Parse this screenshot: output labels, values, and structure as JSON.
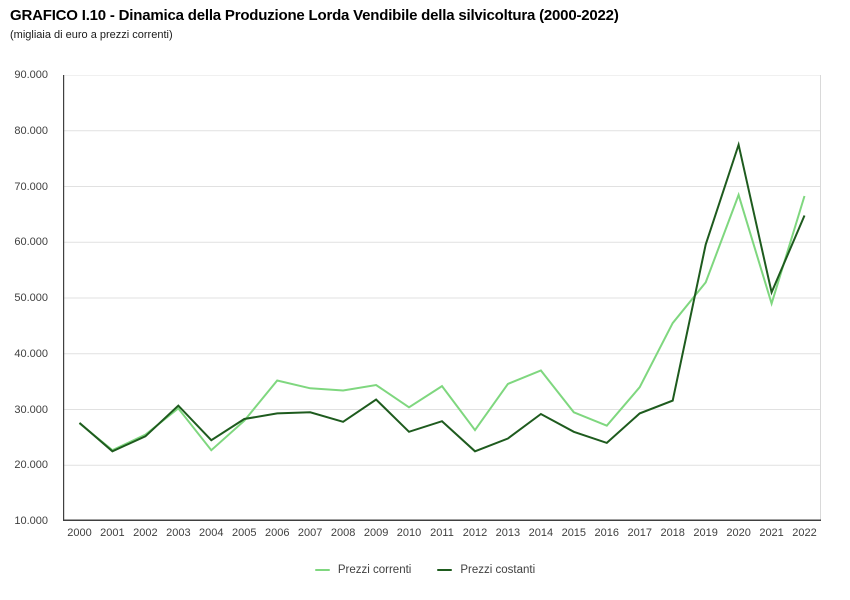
{
  "title": "GRAFICO I.10 - Dinamica della Produzione Lorda Vendibile della silvicoltura (2000-2022)",
  "subtitle": "(migliaia di euro a prezzi correnti)",
  "colors": {
    "series_correnti": "#7fd77f",
    "series_costanti": "#1e5b1e",
    "grid": "#e1e1e1",
    "plot_border_right": "#d9d9d9",
    "axis": "#404040",
    "tick_text": "#404040",
    "title_text": "#000000"
  },
  "legend": {
    "items": [
      {
        "label": "Prezzi correnti",
        "series_index": 0
      },
      {
        "label": "Prezzi costanti",
        "series_index": 1
      }
    ]
  },
  "chart_data": {
    "type": "line",
    "title": "GRAFICO I.10 - Dinamica della Produzione Lorda Vendibile della silvicoltura (2000-2022)",
    "subtitle": "(migliaia di euro a prezzi correnti)",
    "xlabel": "",
    "ylabel": "",
    "categories": [
      "2000",
      "2001",
      "2002",
      "2003",
      "2004",
      "2005",
      "2006",
      "2007",
      "2008",
      "2009",
      "2010",
      "2011",
      "2012",
      "2013",
      "2014",
      "2015",
      "2016",
      "2017",
      "2018",
      "2019",
      "2020",
      "2021",
      "2022"
    ],
    "series": [
      {
        "name": "Prezzi correnti",
        "color": "#7fd77f",
        "values": [
          27500,
          22700,
          25500,
          30200,
          22700,
          28000,
          35200,
          33800,
          33400,
          34400,
          30400,
          34200,
          26300,
          34600,
          37000,
          29500,
          27100,
          34000,
          45500,
          52800,
          68500,
          49000,
          68300
        ]
      },
      {
        "name": "Prezzi costanti",
        "color": "#1e5b1e",
        "values": [
          27600,
          22500,
          25200,
          30700,
          24500,
          28300,
          29300,
          29500,
          27800,
          31800,
          26000,
          27900,
          22500,
          24800,
          29200,
          26000,
          24000,
          29300,
          31600,
          59600,
          77500,
          51000,
          64800
        ]
      }
    ],
    "ylim": [
      10000,
      90000
    ],
    "ytick_step": 10000,
    "ytick_labels": [
      "90.000",
      "80.000",
      "70.000",
      "60.000",
      "50.000",
      "40.000",
      "30.000",
      "20.000",
      "10.000"
    ],
    "grid": true,
    "legend_position": "bottom"
  }
}
